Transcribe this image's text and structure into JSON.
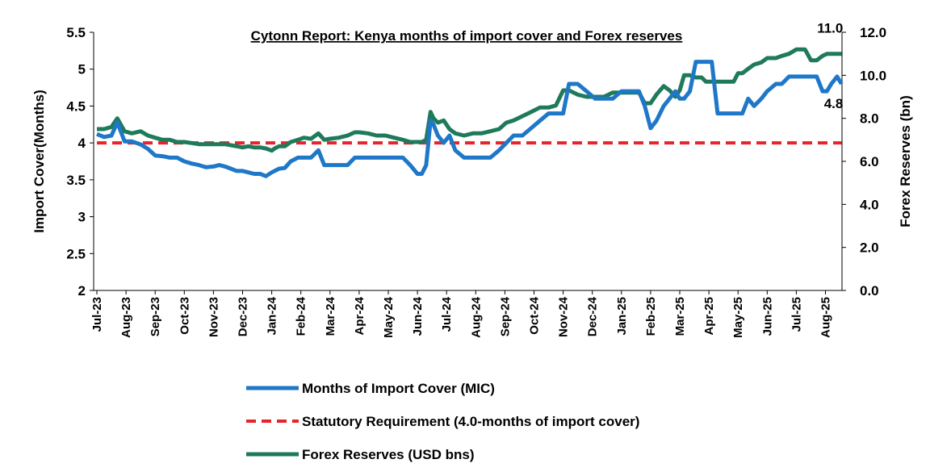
{
  "chart_data": {
    "type": "line",
    "title": "Cytonn Report: Kenya months of import cover and Forex reserves",
    "y_left": {
      "label": "Import Cover(Months)",
      "range": [
        2,
        5.5
      ],
      "ticks": [
        "2",
        "2.5",
        "3",
        "3.5",
        "4",
        "4.5",
        "5",
        "5.5"
      ]
    },
    "y_right": {
      "label": "Forex Reserves (bn)",
      "range": [
        0,
        12
      ],
      "ticks": [
        "0.0",
        "2.0",
        "4.0",
        "6.0",
        "8.0",
        "10.0",
        "12.0"
      ]
    },
    "x_tick_labels": [
      "Jul-23",
      "Aug-23",
      "Sep-23",
      "Oct-23",
      "Nov-23",
      "Dec-23",
      "Jan-24",
      "Feb-24",
      "Mar-24",
      "Apr-24",
      "May-24",
      "Jun-24",
      "Jul-24",
      "Aug-24",
      "Sep-24",
      "Oct-24",
      "Nov-24",
      "Dec-24",
      "Jan-25",
      "Feb-25",
      "Mar-25",
      "Apr-25",
      "May-25",
      "Jun-25",
      "Jul-25",
      "Aug-25"
    ],
    "grid": false,
    "legend_position": "bottom",
    "series": [
      {
        "name": "Months of Import Cover (MIC)",
        "axis": "left",
        "color": "#1f77c8",
        "style": "solid",
        "x": [
          0,
          0.25,
          0.5,
          0.7,
          0.95,
          1.2,
          1.5,
          1.75,
          2.0,
          2.25,
          2.5,
          2.75,
          3.0,
          3.25,
          3.5,
          3.75,
          4.0,
          4.2,
          4.4,
          4.6,
          4.8,
          5.0,
          5.2,
          5.4,
          5.6,
          5.8,
          6.0,
          6.1,
          6.25,
          6.45,
          6.65,
          6.9,
          7.1,
          7.35,
          7.6,
          7.8,
          8.0,
          8.3,
          8.6,
          8.85,
          9.0,
          9.3,
          9.6,
          9.9,
          10.2,
          10.5,
          10.75,
          11.0,
          11.15,
          11.3,
          11.45,
          11.55,
          11.7,
          11.9,
          12.1,
          12.3,
          12.6,
          12.9,
          13.2,
          13.5,
          13.8,
          14.05,
          14.3,
          14.6,
          14.9,
          15.2,
          15.5,
          15.75,
          16.0,
          16.2,
          16.5,
          16.8,
          17.1,
          17.4,
          17.7,
          18.0,
          18.3,
          18.6,
          18.8,
          19.0,
          19.2,
          19.45,
          19.65,
          19.85,
          20.0,
          20.15,
          20.35,
          20.55,
          20.75,
          20.9,
          21.1,
          21.3,
          21.55,
          21.85,
          22.0,
          22.15,
          22.35,
          22.55,
          22.8,
          23.0,
          23.3,
          23.5,
          23.75,
          24.0,
          24.3,
          24.5,
          24.7,
          24.9,
          25.05,
          25.2,
          25.4,
          25.55
        ],
        "y": [
          4.12,
          4.08,
          4.1,
          4.28,
          4.02,
          4.02,
          3.98,
          3.92,
          3.83,
          3.82,
          3.8,
          3.8,
          3.75,
          3.72,
          3.7,
          3.67,
          3.68,
          3.7,
          3.68,
          3.65,
          3.62,
          3.62,
          3.6,
          3.58,
          3.58,
          3.55,
          3.6,
          3.62,
          3.65,
          3.66,
          3.75,
          3.8,
          3.8,
          3.8,
          3.9,
          3.7,
          3.7,
          3.7,
          3.7,
          3.8,
          3.8,
          3.8,
          3.8,
          3.8,
          3.8,
          3.8,
          3.7,
          3.58,
          3.58,
          3.7,
          4.3,
          4.25,
          4.1,
          4.0,
          4.1,
          3.9,
          3.8,
          3.8,
          3.8,
          3.8,
          3.9,
          4.0,
          4.1,
          4.1,
          4.2,
          4.3,
          4.4,
          4.4,
          4.4,
          4.8,
          4.8,
          4.7,
          4.6,
          4.6,
          4.6,
          4.7,
          4.7,
          4.7,
          4.5,
          4.2,
          4.3,
          4.5,
          4.6,
          4.7,
          4.6,
          4.6,
          4.7,
          5.1,
          5.1,
          5.1,
          5.1,
          4.4,
          4.4,
          4.4,
          4.4,
          4.4,
          4.6,
          4.5,
          4.6,
          4.7,
          4.8,
          4.8,
          4.9,
          4.9,
          4.9,
          4.9,
          4.9,
          4.7,
          4.7,
          4.8,
          4.9,
          4.8
        ]
      },
      {
        "name": "Statutory Requirement (4.0-months of import cover)",
        "axis": "left",
        "color": "#e8232a",
        "style": "dashed",
        "x": [
          0,
          25.55
        ],
        "y": [
          4.0,
          4.0
        ]
      },
      {
        "name": "Forex Reserves (USD bns)",
        "axis": "right",
        "color": "#1e7a5a",
        "style": "solid",
        "x": [
          0,
          0.25,
          0.5,
          0.7,
          0.95,
          1.2,
          1.5,
          1.75,
          2.0,
          2.25,
          2.5,
          2.75,
          3.0,
          3.25,
          3.5,
          3.75,
          4.0,
          4.2,
          4.4,
          4.6,
          4.8,
          5.0,
          5.2,
          5.4,
          5.6,
          5.8,
          6.0,
          6.1,
          6.25,
          6.45,
          6.65,
          6.9,
          7.1,
          7.35,
          7.6,
          7.8,
          8.0,
          8.3,
          8.6,
          8.85,
          9.0,
          9.3,
          9.6,
          9.9,
          10.2,
          10.5,
          10.75,
          11.0,
          11.15,
          11.3,
          11.45,
          11.55,
          11.7,
          11.9,
          12.1,
          12.3,
          12.6,
          12.9,
          13.2,
          13.5,
          13.8,
          14.05,
          14.3,
          14.6,
          14.9,
          15.2,
          15.5,
          15.75,
          16.0,
          16.2,
          16.5,
          16.8,
          17.1,
          17.4,
          17.7,
          18.0,
          18.3,
          18.6,
          18.8,
          19.0,
          19.2,
          19.45,
          19.65,
          19.85,
          20.0,
          20.15,
          20.35,
          20.55,
          20.75,
          20.9,
          21.1,
          21.3,
          21.55,
          21.85,
          22.0,
          22.15,
          22.35,
          22.55,
          22.8,
          23.0,
          23.3,
          23.5,
          23.75,
          24.0,
          24.3,
          24.5,
          24.7,
          24.9,
          25.05,
          25.2,
          25.4,
          25.55
        ],
        "y": [
          7.5,
          7.5,
          7.6,
          8.0,
          7.4,
          7.3,
          7.4,
          7.2,
          7.1,
          7.0,
          7.0,
          6.9,
          6.9,
          6.85,
          6.8,
          6.8,
          6.8,
          6.8,
          6.8,
          6.75,
          6.7,
          6.65,
          6.7,
          6.65,
          6.65,
          6.6,
          6.5,
          6.6,
          6.7,
          6.7,
          6.9,
          7.0,
          7.1,
          7.05,
          7.3,
          7.0,
          7.05,
          7.1,
          7.2,
          7.35,
          7.35,
          7.3,
          7.2,
          7.2,
          7.1,
          7.0,
          6.9,
          6.9,
          6.9,
          7.0,
          8.3,
          8.0,
          7.8,
          7.9,
          7.5,
          7.3,
          7.2,
          7.3,
          7.3,
          7.4,
          7.5,
          7.8,
          7.9,
          8.1,
          8.3,
          8.5,
          8.5,
          8.6,
          9.3,
          9.3,
          9.1,
          9.0,
          9.0,
          9.0,
          9.2,
          9.2,
          9.2,
          9.2,
          8.7,
          8.7,
          9.1,
          9.5,
          9.3,
          9.0,
          9.3,
          10.0,
          10.0,
          9.9,
          9.9,
          9.7,
          9.7,
          9.7,
          9.7,
          9.7,
          10.1,
          10.1,
          10.3,
          10.5,
          10.6,
          10.8,
          10.8,
          10.9,
          11.0,
          11.2,
          11.2,
          10.7,
          10.7,
          10.9,
          11.0,
          11.0,
          11.0,
          11.0
        ]
      }
    ],
    "annotations": [
      {
        "text": "11.0",
        "axis": "right",
        "x": 25.55,
        "y": 11.0
      },
      {
        "text": "4.8",
        "axis": "left",
        "x": 25.55,
        "y": 4.8
      }
    ]
  }
}
